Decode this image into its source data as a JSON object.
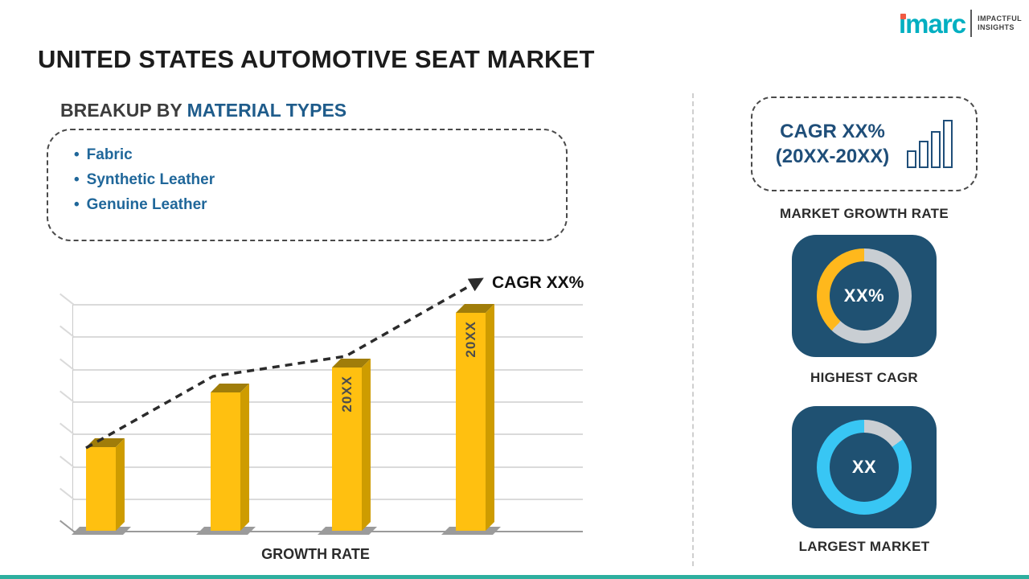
{
  "title": "UNITED STATES AUTOMOTIVE SEAT MARKET",
  "logo": {
    "brand": "imarc",
    "tagline_line1": "IMPACTFUL",
    "tagline_line2": "INSIGHTS"
  },
  "breakup": {
    "heading_prefix": "BREAKUP BY",
    "heading_highlight": "MATERIAL TYPES",
    "bullet": "•",
    "items": [
      "Fabric",
      "Synthetic Leather",
      "Genuine Leather"
    ]
  },
  "chart_data": {
    "type": "bar",
    "title": "",
    "bar_labels": [
      "",
      "",
      "20XX",
      "20XX"
    ],
    "values": [
      37,
      61,
      72,
      96
    ],
    "ylim": [
      0,
      100
    ],
    "grid": true,
    "trend_label": "CAGR XX%",
    "xlabel": "GROWTH RATE",
    "bar_color": "#FFC010",
    "legend": "none"
  },
  "right_panel": {
    "growth_box": {
      "line1": "CAGR XX%",
      "line2": "(20XX-20XX)"
    },
    "market_growth_label": "MARKET GROWTH RATE",
    "highest_cagr": {
      "value": "XX%",
      "label": "HIGHEST CAGR",
      "segment_pct": 38,
      "segment_color": "#FFB81C"
    },
    "largest_market": {
      "value": "XX",
      "label": "LARGEST MARKET",
      "segment_pct": 85,
      "segment_color": "#38C6F4"
    }
  },
  "colors": {
    "accent_blue": "#1F5C8B",
    "navy": "#1F4E79",
    "card_bg": "#1F5172",
    "bar_gold": "#FFC010",
    "donut_track": "#C9CED3",
    "footer_teal": "#2EAF9F",
    "brand_teal": "#00AFC1"
  }
}
